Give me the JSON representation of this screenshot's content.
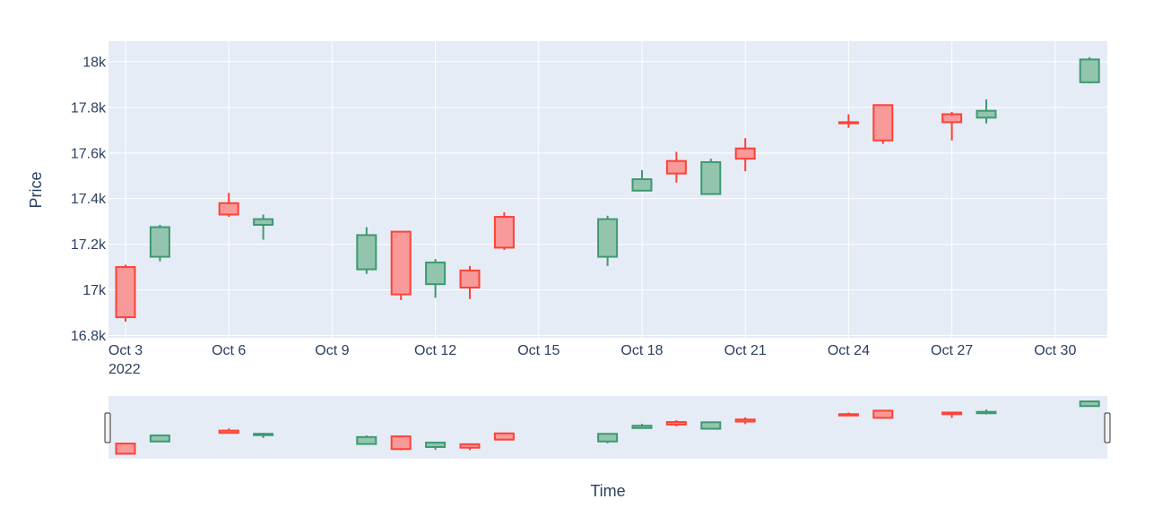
{
  "chart_data": {
    "type": "candlestick",
    "title": "",
    "xlabel": "Time",
    "ylabel": "Price",
    "x_ticks": [
      "Oct 3",
      "Oct 6",
      "Oct 9",
      "Oct 12",
      "Oct 15",
      "Oct 18",
      "Oct 21",
      "Oct 24",
      "Oct 27",
      "Oct 30"
    ],
    "x_year_label": "2022",
    "y_ticks": [
      "16.8k",
      "17k",
      "17.2k",
      "17.4k",
      "17.6k",
      "17.8k",
      "18k"
    ],
    "ylim": [
      16790,
      18090
    ],
    "xlim": [
      "2022-10-02",
      "2022-10-31"
    ],
    "grid": true,
    "rangeslider": true,
    "colors": {
      "increasing": "#3d9970",
      "increasing_fill": "#93c5ae",
      "decreasing": "#ff4136",
      "decreasing_fill": "#f8999a",
      "plot_bg": "#e5ecf6",
      "grid": "#ffffff",
      "text": "#2a3f5f"
    },
    "candles": [
      {
        "date": "2022-10-03",
        "open": 17100,
        "high": 17110,
        "low": 16860,
        "close": 16880
      },
      {
        "date": "2022-10-04",
        "open": 17145,
        "high": 17285,
        "low": 17125,
        "close": 17275
      },
      {
        "date": "2022-10-06",
        "open": 17380,
        "high": 17425,
        "low": 17320,
        "close": 17330
      },
      {
        "date": "2022-10-07",
        "open": 17285,
        "high": 17330,
        "low": 17220,
        "close": 17310
      },
      {
        "date": "2022-10-10",
        "open": 17090,
        "high": 17275,
        "low": 17070,
        "close": 17240
      },
      {
        "date": "2022-10-11",
        "open": 17255,
        "high": 17255,
        "low": 16955,
        "close": 16980
      },
      {
        "date": "2022-10-12",
        "open": 17025,
        "high": 17135,
        "low": 16965,
        "close": 17120
      },
      {
        "date": "2022-10-13",
        "open": 17085,
        "high": 17105,
        "low": 16960,
        "close": 17010
      },
      {
        "date": "2022-10-14",
        "open": 17320,
        "high": 17340,
        "low": 17175,
        "close": 17185
      },
      {
        "date": "2022-10-17",
        "open": 17145,
        "high": 17325,
        "low": 17105,
        "close": 17310
      },
      {
        "date": "2022-10-18",
        "open": 17435,
        "high": 17525,
        "low": 17435,
        "close": 17485
      },
      {
        "date": "2022-10-19",
        "open": 17565,
        "high": 17605,
        "low": 17470,
        "close": 17510
      },
      {
        "date": "2022-10-20",
        "open": 17420,
        "high": 17575,
        "low": 17420,
        "close": 17560
      },
      {
        "date": "2022-10-21",
        "open": 17620,
        "high": 17665,
        "low": 17520,
        "close": 17575
      },
      {
        "date": "2022-10-24",
        "open": 17735,
        "high": 17770,
        "low": 17710,
        "close": 17730
      },
      {
        "date": "2022-10-25",
        "open": 17810,
        "high": 17810,
        "low": 17640,
        "close": 17655
      },
      {
        "date": "2022-10-27",
        "open": 17770,
        "high": 17780,
        "low": 17655,
        "close": 17735
      },
      {
        "date": "2022-10-28",
        "open": 17755,
        "high": 17835,
        "low": 17730,
        "close": 17785
      },
      {
        "date": "2022-10-31",
        "open": 17910,
        "high": 18020,
        "low": 17905,
        "close": 18010
      }
    ]
  }
}
